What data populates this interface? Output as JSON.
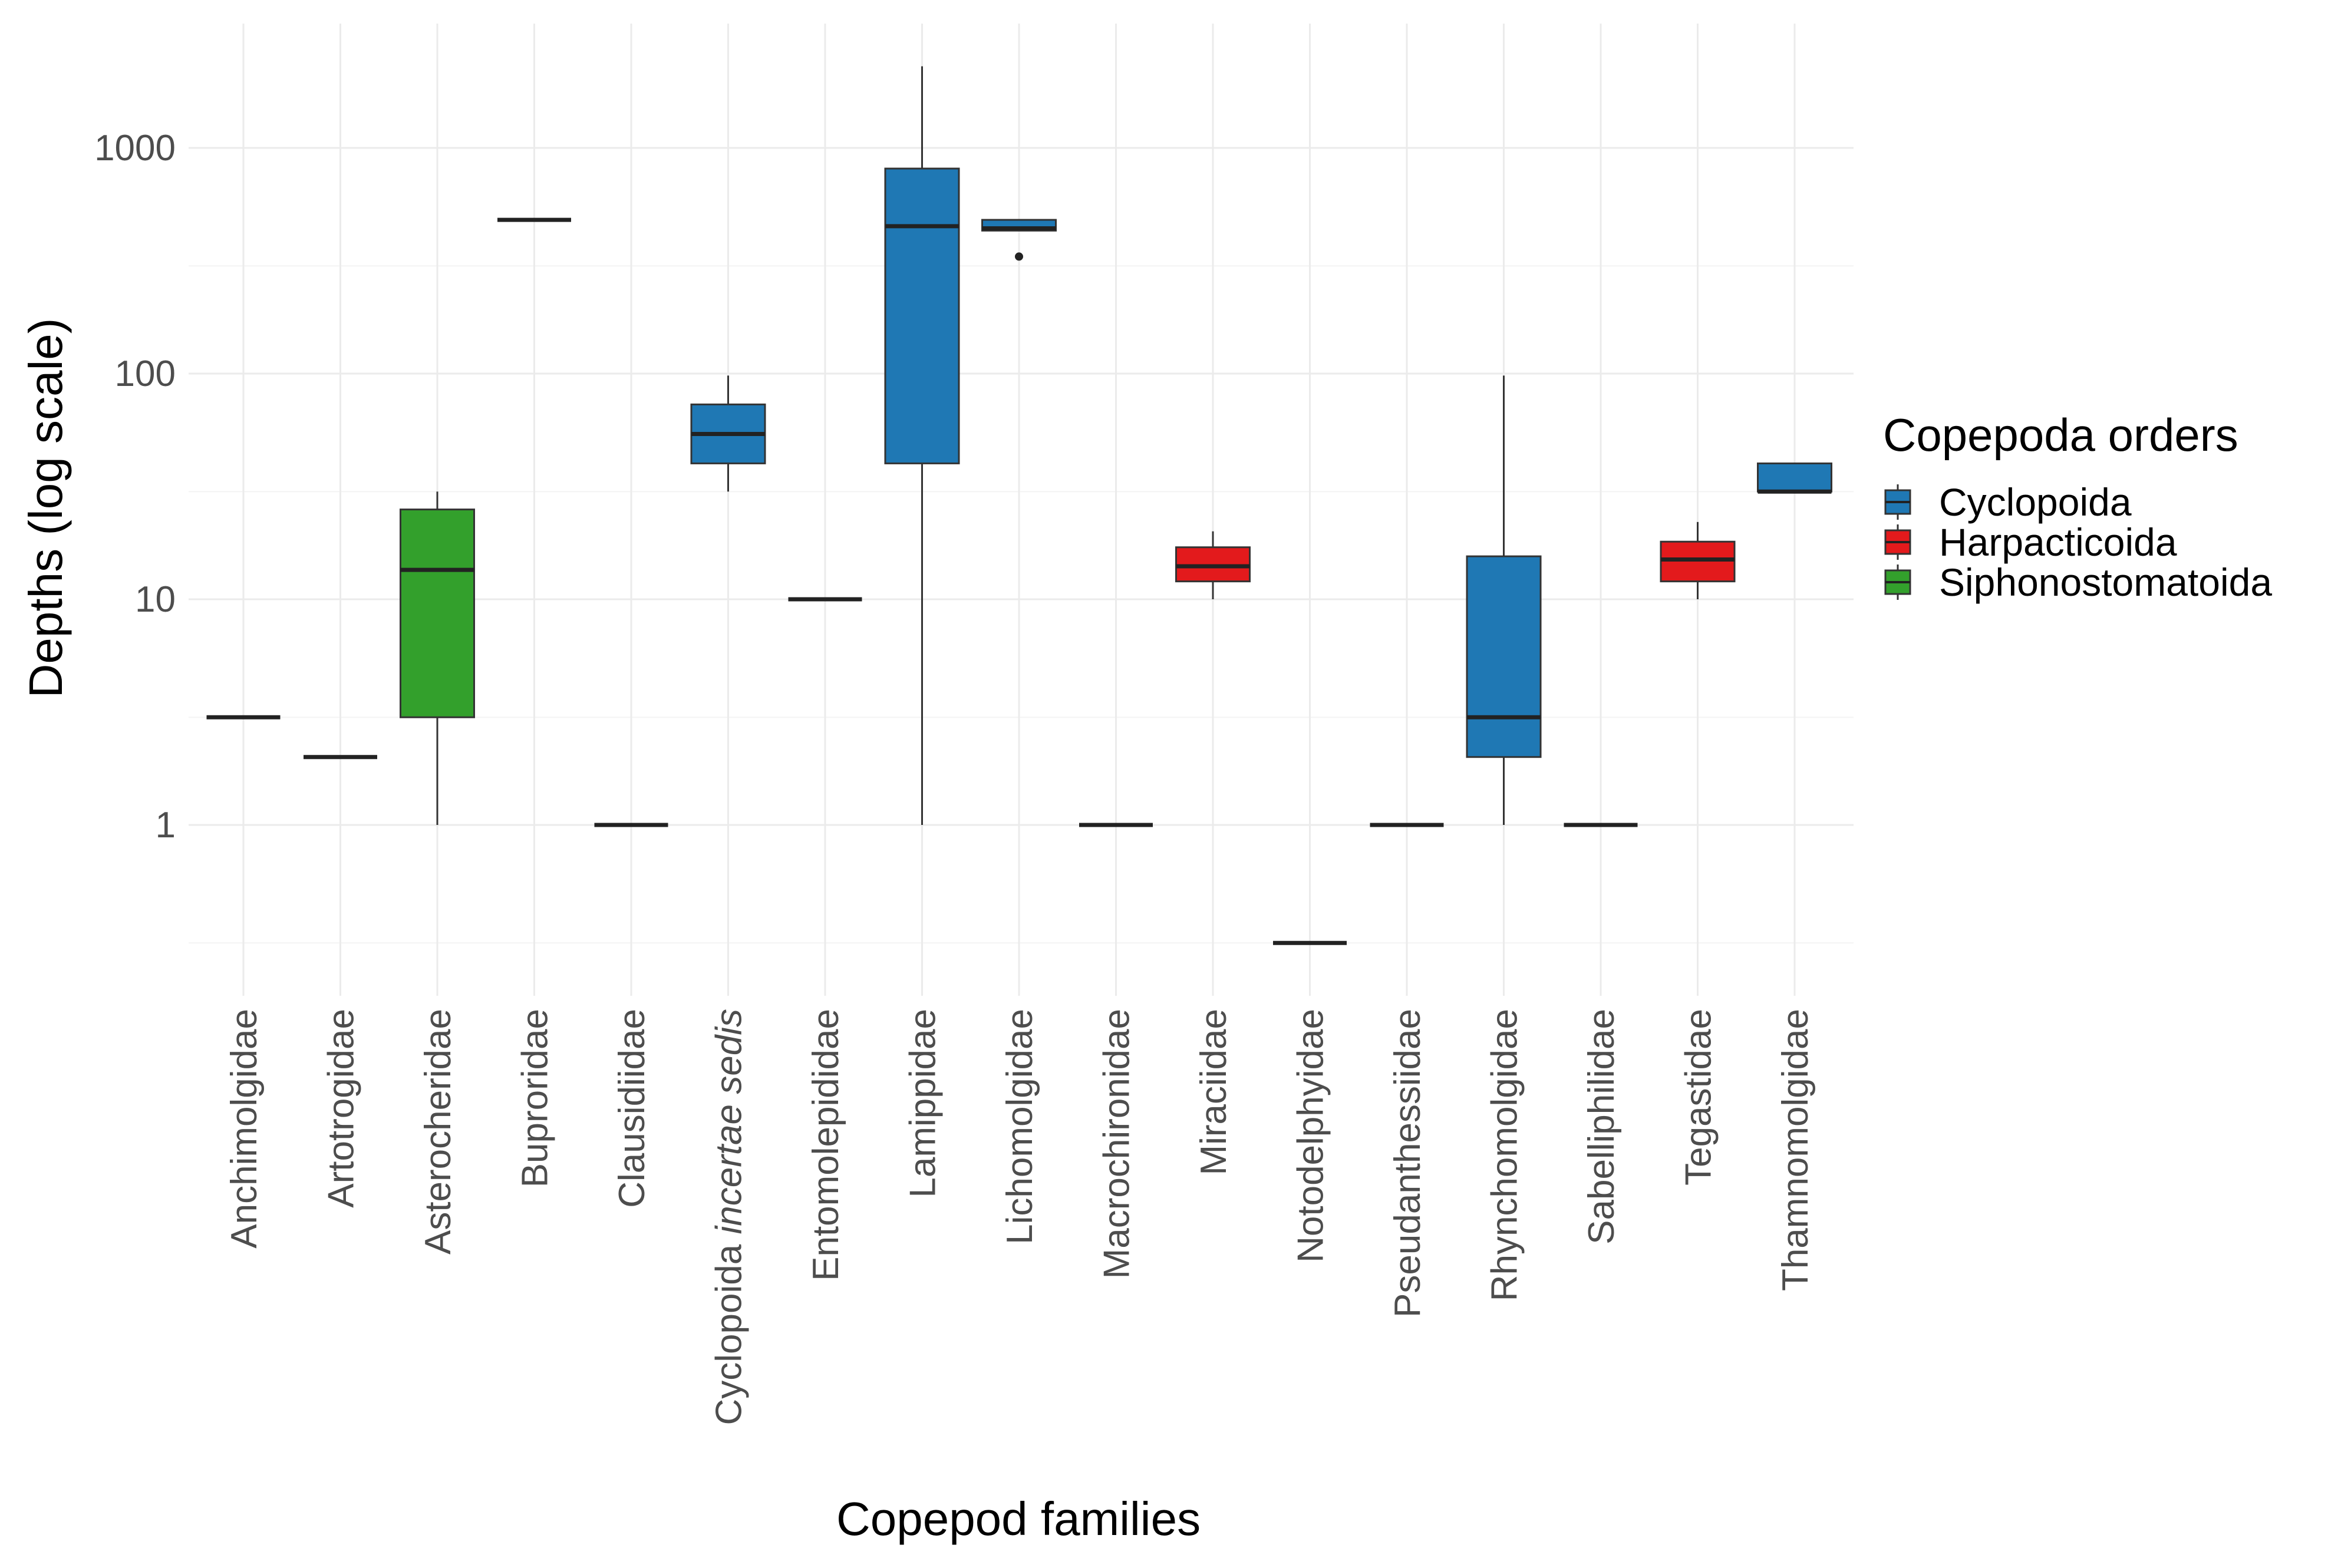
{
  "chart_data": {
    "type": "boxplot",
    "xlabel": "Copepod families",
    "ylabel": "Depths (log scale)",
    "y_scale": "log10",
    "ylim": [
      0.2,
      3000
    ],
    "y_ticks": [
      1,
      10,
      100,
      1000
    ],
    "y_tick_labels": [
      "1",
      "10",
      "100",
      "1000"
    ],
    "grid": true,
    "legend": {
      "title": "Copepoda orders",
      "placement": "right",
      "entries": [
        {
          "name": "Cyclopoida",
          "color": "#1f78b4"
        },
        {
          "name": "Harpacticoida",
          "color": "#e31a1c"
        },
        {
          "name": "Siphonostomatoida",
          "color": "#33a02c"
        }
      ]
    },
    "categories": [
      {
        "name": "Anchimolgidae",
        "order": "Cyclopoida",
        "min": 3,
        "q1": 3,
        "median": 3,
        "q3": 3,
        "max": 3,
        "outliers": []
      },
      {
        "name": "Artotrogidae",
        "order": "Siphonostomatoida",
        "min": 2,
        "q1": 2,
        "median": 2,
        "q3": 2,
        "max": 2,
        "outliers": []
      },
      {
        "name": "Asterocheridae",
        "order": "Siphonostomatoida",
        "min": 1,
        "q1": 3,
        "median": 13.5,
        "q3": 25,
        "max": 30,
        "outliers": []
      },
      {
        "name": "Buproridae",
        "order": "Cyclopoida",
        "min": 480,
        "q1": 480,
        "median": 480,
        "q3": 480,
        "max": 480,
        "outliers": []
      },
      {
        "name": "Clausidiidae",
        "order": "Cyclopoida",
        "min": 1,
        "q1": 1,
        "median": 1,
        "q3": 1,
        "max": 1,
        "outliers": []
      },
      {
        "name": "Cyclopoida incertae sedis",
        "name_plain": "Cyclopoida ",
        "name_italic": "incertae sedis",
        "order": "Cyclopoida",
        "min": 30,
        "q1": 40,
        "median": 54,
        "q3": 73,
        "max": 98,
        "outliers": []
      },
      {
        "name": "Entomolepididae",
        "order": "Siphonostomatoida",
        "min": 10,
        "q1": 10,
        "median": 10,
        "q3": 10,
        "max": 10,
        "outliers": []
      },
      {
        "name": "Lamippidae",
        "order": "Cyclopoida",
        "min": 1,
        "q1": 40,
        "median": 450,
        "q3": 810,
        "max": 2300,
        "outliers": []
      },
      {
        "name": "Lichomolgidae",
        "order": "Cyclopoida",
        "min": 430,
        "q1": 430,
        "median": 440,
        "q3": 480,
        "max": 480,
        "outliers": [
          330
        ]
      },
      {
        "name": "Macrochironidae",
        "order": "Cyclopoida",
        "min": 1,
        "q1": 1,
        "median": 1,
        "q3": 1,
        "max": 1,
        "outliers": []
      },
      {
        "name": "Miraciidae",
        "order": "Harpacticoida",
        "min": 10,
        "q1": 12,
        "median": 14,
        "q3": 17,
        "max": 20,
        "outliers": []
      },
      {
        "name": "Notodelphyidae",
        "order": "Cyclopoida",
        "min": 0.3,
        "q1": 0.3,
        "median": 0.3,
        "q3": 0.3,
        "max": 0.3,
        "outliers": []
      },
      {
        "name": "Pseudanthessiidae",
        "order": "Cyclopoida",
        "min": 1,
        "q1": 1,
        "median": 1,
        "q3": 1,
        "max": 1,
        "outliers": []
      },
      {
        "name": "Rhynchomolgidae",
        "order": "Cyclopoida",
        "min": 1,
        "q1": 2,
        "median": 3,
        "q3": 15.5,
        "max": 98,
        "outliers": []
      },
      {
        "name": "Sabelliphilidae",
        "order": "Cyclopoida",
        "min": 1,
        "q1": 1,
        "median": 1,
        "q3": 1,
        "max": 1,
        "outliers": []
      },
      {
        "name": "Tegastidae",
        "order": "Harpacticoida",
        "min": 10,
        "q1": 12,
        "median": 15,
        "q3": 18,
        "max": 22,
        "outliers": []
      },
      {
        "name": "Thamnomolgidae",
        "order": "Cyclopoida",
        "min": 30,
        "q1": 30,
        "median": 30,
        "q3": 40,
        "max": 40,
        "outliers": []
      }
    ]
  }
}
